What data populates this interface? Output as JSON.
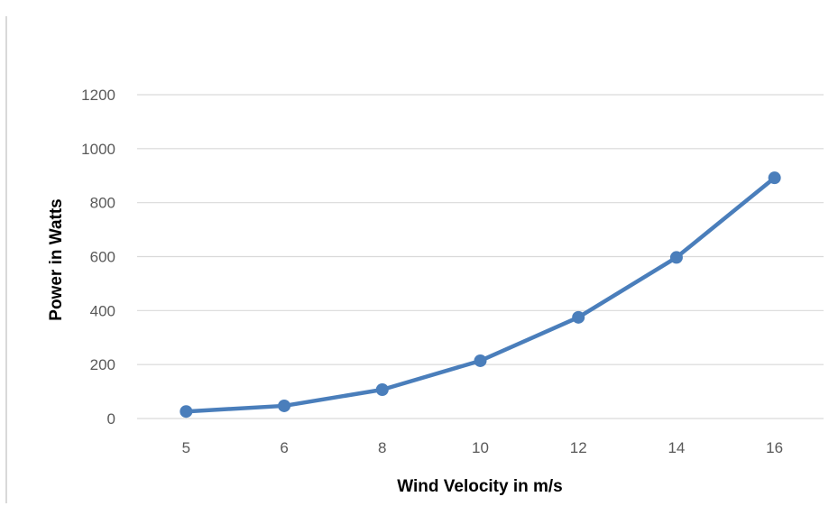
{
  "chart_data": {
    "type": "line",
    "categories": [
      "5",
      "6",
      "8",
      "10",
      "12",
      "14",
      "16"
    ],
    "series": [
      {
        "values": [
          26,
          47,
          107,
          214,
          375,
          597,
          892
        ]
      }
    ],
    "xlabel": "Wind Velocity in m/s",
    "ylabel": "Power in Watts",
    "ylim": [
      0,
      1200
    ],
    "yticks": [
      0,
      200,
      400,
      600,
      800,
      1000,
      1200
    ],
    "grid": "horizontal",
    "legend": "none",
    "colors": {
      "series": "#4a7ebb",
      "grid": "#d9d9d9",
      "tick_text": "#595959",
      "title_text": "#000000"
    }
  }
}
